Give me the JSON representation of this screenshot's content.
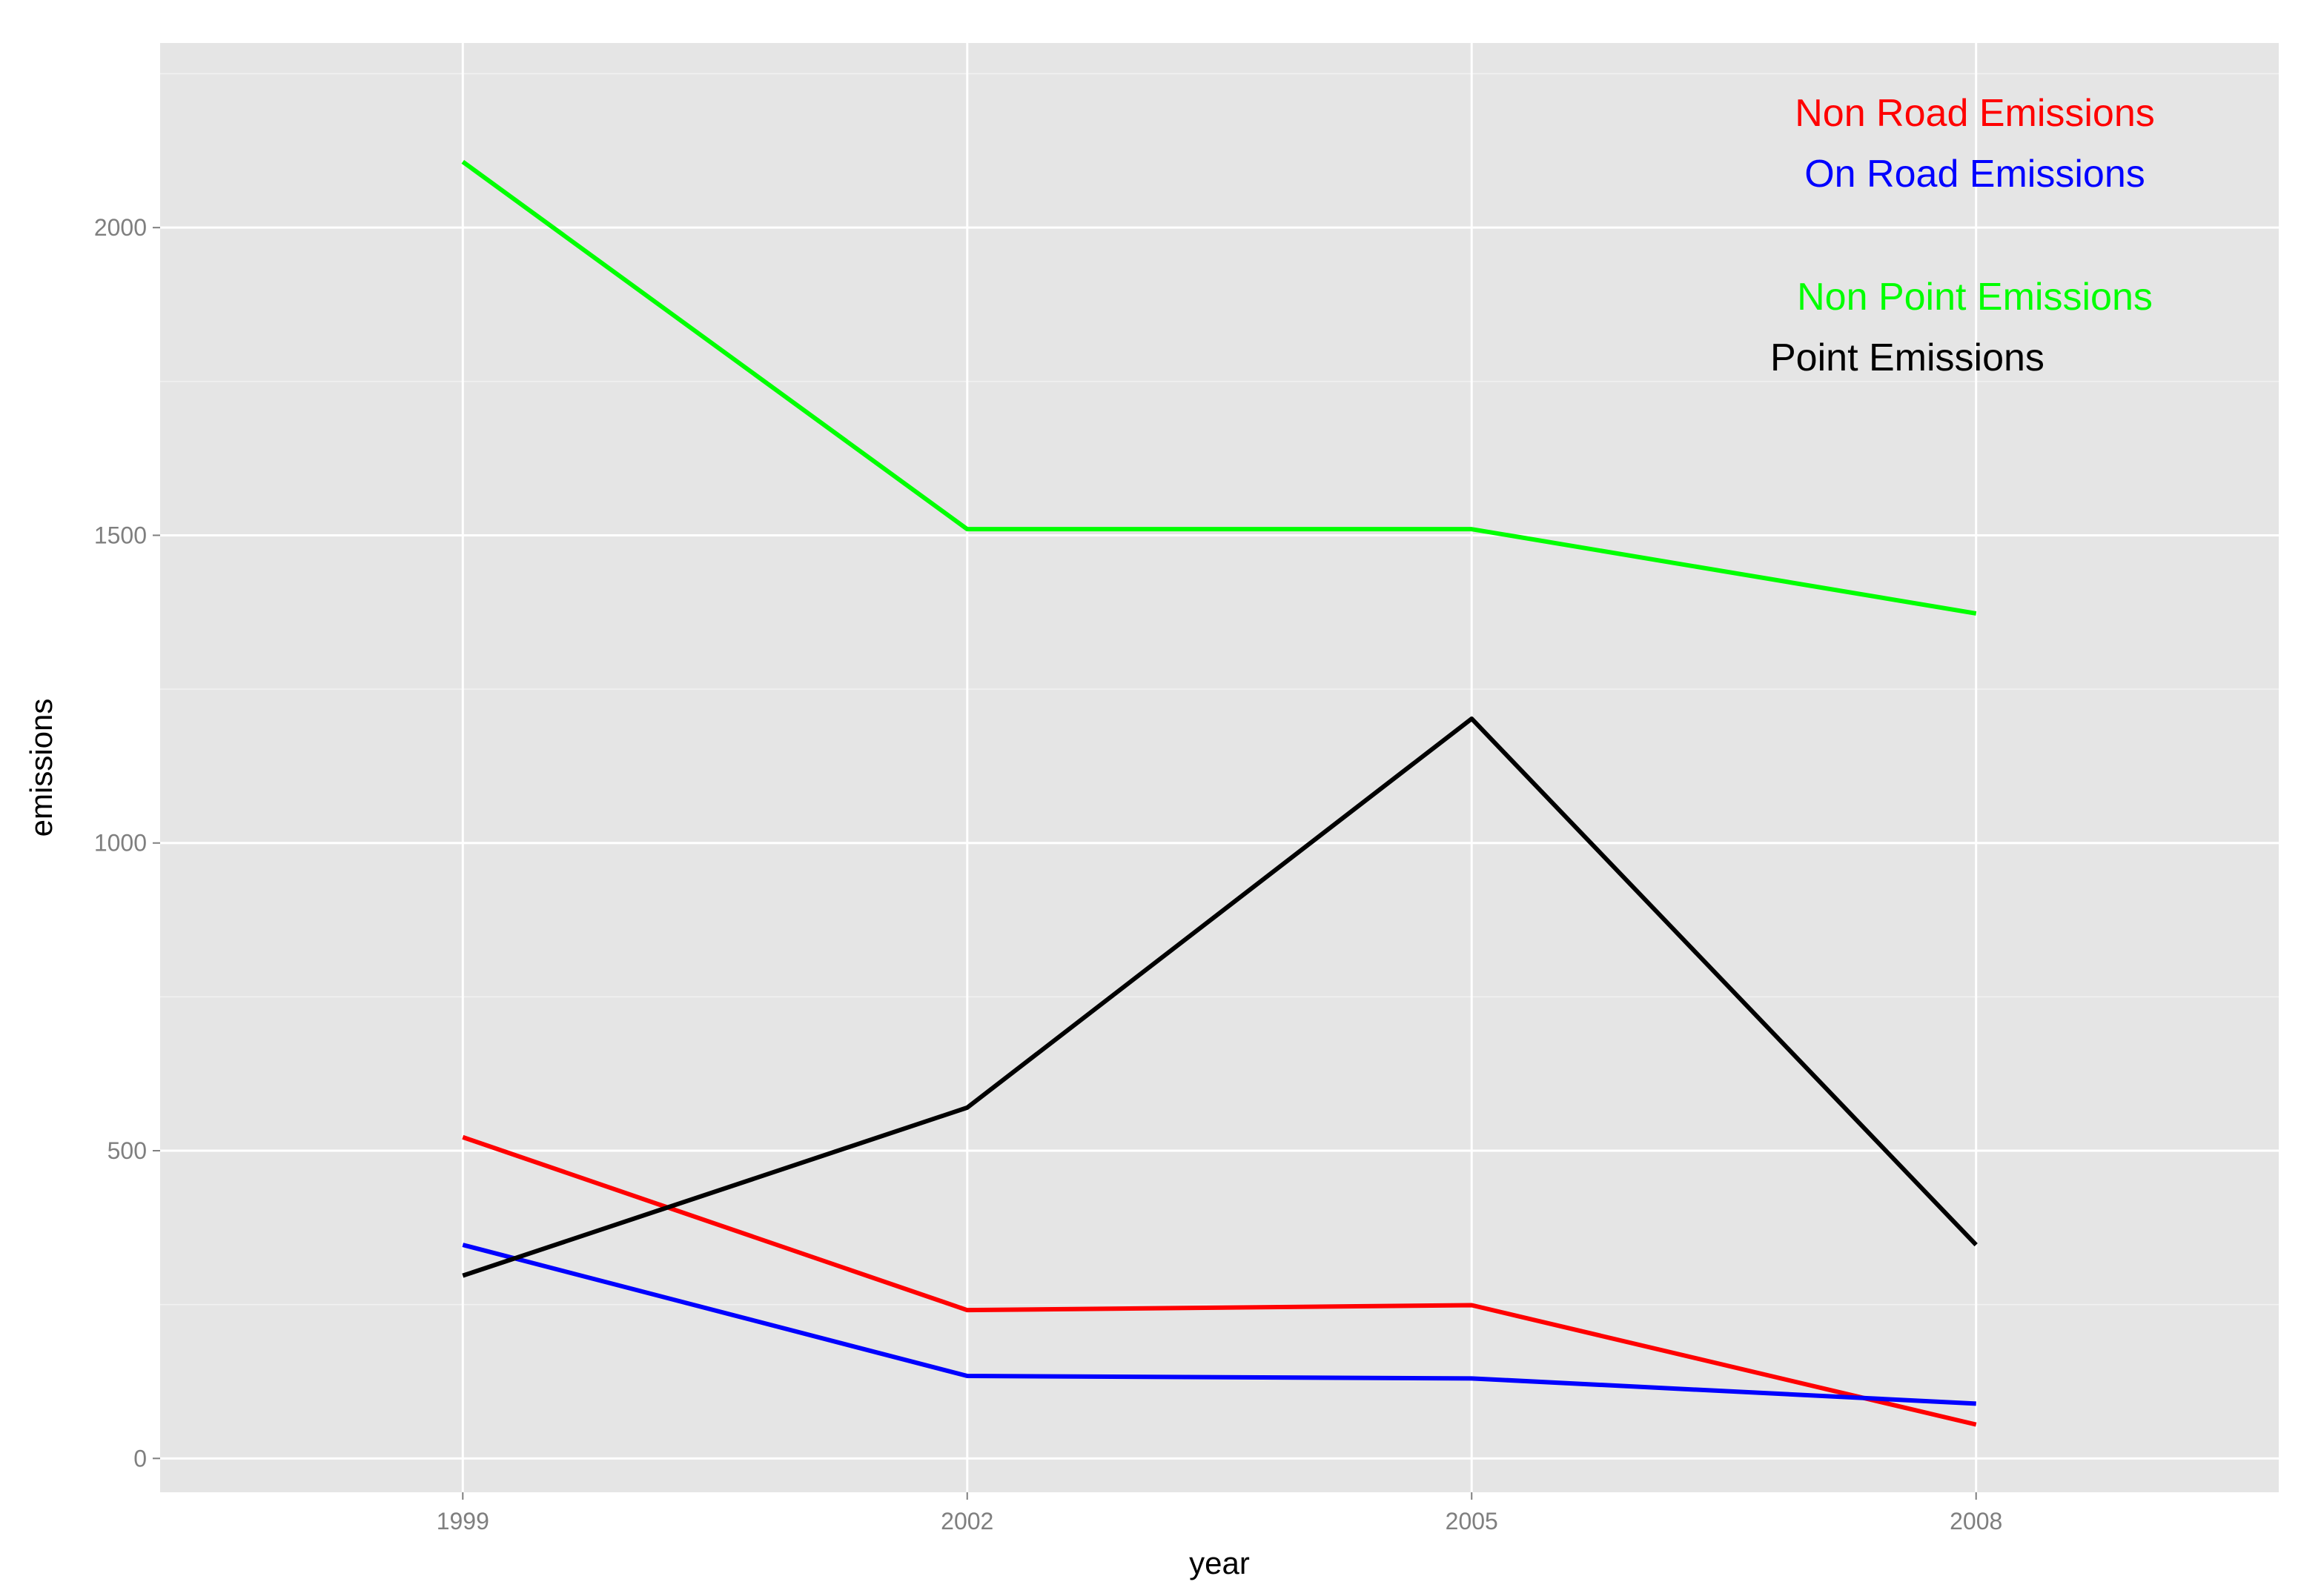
{
  "chart_data": {
    "type": "line",
    "title": "",
    "xlabel": "year",
    "ylabel": "emissions",
    "x": [
      1999,
      2002,
      2005,
      2008
    ],
    "x_tick_labels": [
      "1999",
      "2002",
      "2005",
      "2008"
    ],
    "y_tick_labels": [
      "0",
      "500",
      "1000",
      "1500",
      "2000"
    ],
    "y_ticks": [
      0,
      500,
      1000,
      1500,
      2000
    ],
    "xlim": [
      1997.2,
      2009.8
    ],
    "ylim": [
      -55,
      2300
    ],
    "grid": true,
    "legend_placement": "top-right (annotation text)",
    "series": [
      {
        "name": "Non Road Emissions",
        "color": "#ff0000",
        "values": [
          522,
          241,
          249,
          55
        ]
      },
      {
        "name": "On Road Emissions",
        "color": "#0000ff",
        "values": [
          347,
          134,
          130,
          89
        ]
      },
      {
        "name": "Non Point Emissions",
        "color": "#00ff00",
        "values": [
          2107,
          1510,
          1510,
          1373
        ]
      },
      {
        "name": "Point Emissions",
        "color": "#000000",
        "values": [
          297,
          570,
          1202,
          347
        ]
      }
    ],
    "colors": {
      "panel_background": "#e5e5e5",
      "grid_major": "#ffffff",
      "grid_minor": "#f2f2f2",
      "tick_text": "#7f7f7f"
    }
  }
}
